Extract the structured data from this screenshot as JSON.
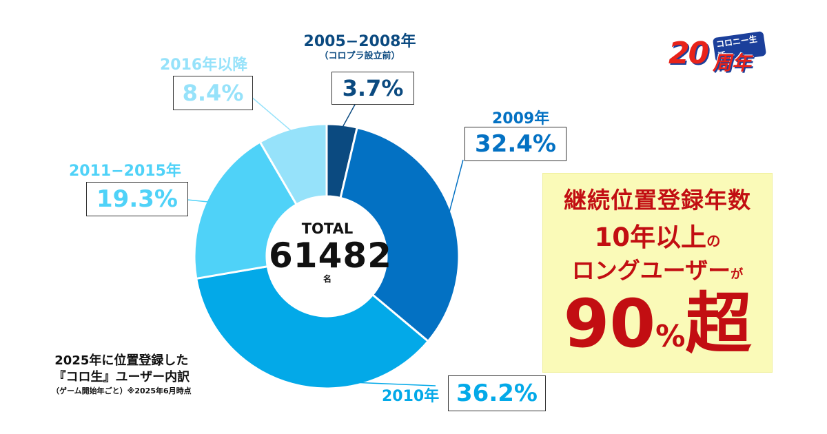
{
  "chart_data": {
    "type": "pie",
    "style": "donut",
    "title": "",
    "start": "top, clockwise",
    "series": [
      {
        "name": "2005−2008年",
        "sublabel": "（コロプラ設立前）",
        "value": 3.7,
        "value_label": "3.7%",
        "color": "#0b4a80"
      },
      {
        "name": "2009年",
        "value": 32.4,
        "value_label": "32.4%",
        "color": "#0371c3"
      },
      {
        "name": "2010年",
        "value": 36.2,
        "value_label": "36.2%",
        "color": "#03a9e8"
      },
      {
        "name": "2011−2015年",
        "value": 19.3,
        "value_label": "19.3%",
        "color": "#4fd2f8"
      },
      {
        "name": "2016年以降",
        "value": 8.4,
        "value_label": "8.4%",
        "color": "#96e2fa"
      }
    ],
    "center": {
      "label": "TOTAL",
      "value": "61482",
      "unit": "名"
    }
  },
  "callout": {
    "line1": "継続位置登録年数",
    "line2_main": "10年以上",
    "line2_small": "の",
    "line3_main": "ロングユーザー",
    "line3_small": "が",
    "line4_main": "90",
    "line4_small": "%",
    "line4_end": "超"
  },
  "logo": {
    "number": "20",
    "kanji": "周年",
    "brand": "コロニー生活"
  },
  "note": {
    "line1": "2025年に位置登録した",
    "line2": "『コロ生』ユーザー内訳",
    "line3": "（ゲーム開始年ごと）※2025年6月時点"
  }
}
